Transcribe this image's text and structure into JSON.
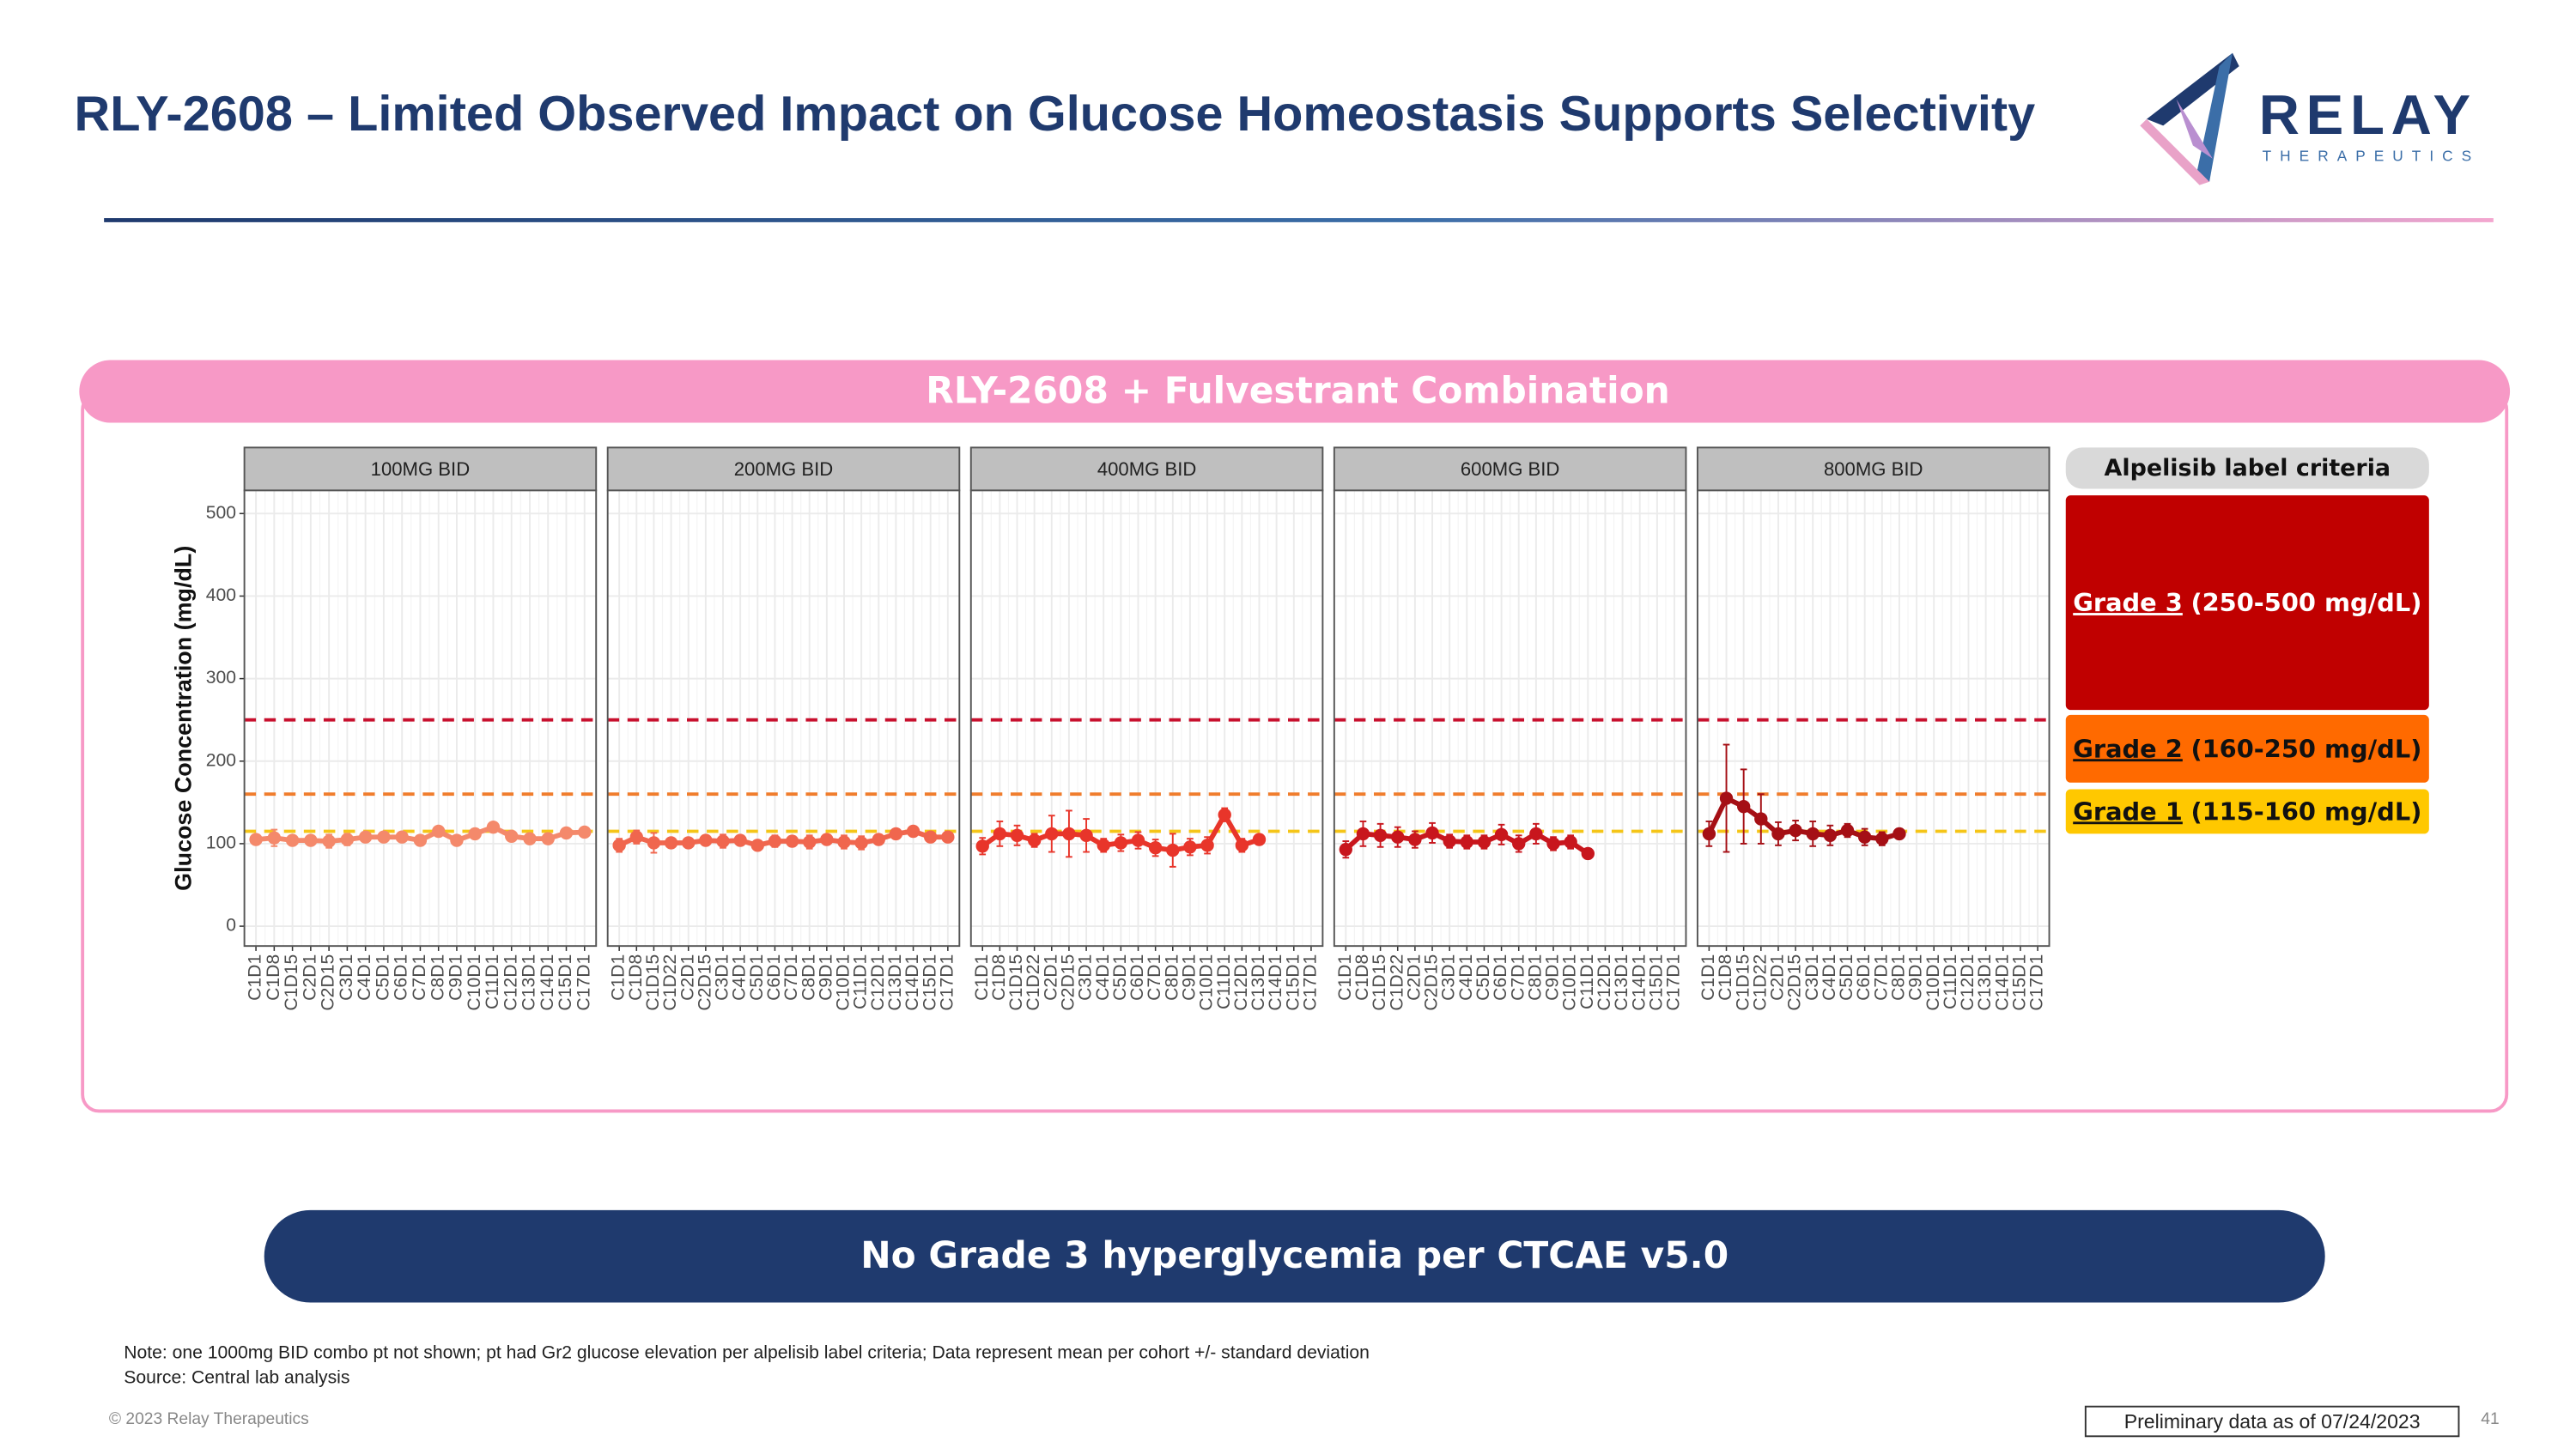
{
  "slide": {
    "title": "RLY-2608 – Limited Observed Impact on Glucose Homeostasis Supports Selectivity",
    "logo_name": "RELAY",
    "logo_sub": "THERAPEUTICS",
    "panel_title": "RLY-2608 + Fulvestrant Combination",
    "banner": "No Grade 3 hyperglycemia per CTCAE v5.0",
    "note": "Note: one 1000mg BID combo pt not shown; pt had Gr2 glucose elevation per alpelisib label criteria; Data represent mean per cohort +/- standard deviation",
    "source": "Source: Central lab analysis",
    "copyright": "© 2023 Relay Therapeutics",
    "footer_box": "Preliminary data as of 07/24/2023",
    "page_number": "41"
  },
  "legend": {
    "title": "Alpelisib label criteria",
    "items": [
      {
        "grade": "Grade 3",
        "range": "(250-500 mg/dL)",
        "color": "#c00000",
        "threshold": 250,
        "line_color": "#c8102e"
      },
      {
        "grade": "Grade 2",
        "range": "(160-250 mg/dL)",
        "color": "#ff6a00",
        "threshold": 160,
        "line_color": "#f07d2d"
      },
      {
        "grade": "Grade 1",
        "range": "(115-160 mg/dL)",
        "color": "#ffc800",
        "threshold": 115,
        "line_color": "#f5c518"
      }
    ]
  },
  "chart_data": [
    {
      "type": "line",
      "title": "100MG BID",
      "y_label": "Glucose Concentration (mg/dL)",
      "categories": [
        "C1D1",
        "C1D8",
        "C1D15",
        "C2D1",
        "C2D15",
        "C3D1",
        "C4D1",
        "C5D1",
        "C6D1",
        "C7D1",
        "C8D1",
        "C9D1",
        "C10D1",
        "C11D1",
        "C12D1",
        "C13D1",
        "C14D1",
        "C15D1",
        "C17D1"
      ],
      "series": [
        {
          "color": "#f4896b",
          "values": [
            105,
            107,
            104,
            104,
            103,
            105,
            108,
            108,
            108,
            104,
            115,
            104,
            112,
            120,
            109,
            106,
            106,
            113,
            114
          ],
          "errors": [
            6,
            10,
            5,
            4,
            8,
            7,
            6,
            5,
            5,
            6,
            5,
            4,
            6,
            5,
            6,
            4,
            5,
            4,
            4
          ]
        }
      ],
      "ylim": [
        -24,
        528
      ],
      "yticks": [
        0,
        100,
        200,
        300,
        400,
        500
      ],
      "grid": true
    },
    {
      "type": "line",
      "title": "200MG BID",
      "categories": [
        "C1D1",
        "C1D8",
        "C1D15",
        "C1D22",
        "C2D1",
        "C2D15",
        "C3D1",
        "C4D1",
        "C5D1",
        "C6D1",
        "C7D1",
        "C8D1",
        "C9D1",
        "C10D1",
        "C11D1",
        "C12D1",
        "C13D1",
        "C14D1",
        "C15D1",
        "C17D1"
      ],
      "series": [
        {
          "color": "#f0664e",
          "values": [
            98,
            108,
            101,
            101,
            101,
            104,
            103,
            104,
            98,
            103,
            103,
            102,
            105,
            102,
            101,
            105,
            112,
            115,
            108,
            108
          ],
          "errors": [
            8,
            8,
            12,
            5,
            5,
            6,
            8,
            5,
            5,
            7,
            6,
            8,
            6,
            8,
            8,
            6,
            5,
            6,
            5,
            4
          ]
        }
      ],
      "ylim": [
        -24,
        528
      ],
      "yticks": [
        0,
        100,
        200,
        300,
        400,
        500
      ],
      "grid": true
    },
    {
      "type": "line",
      "title": "400MG BID",
      "categories": [
        "C1D1",
        "C1D8",
        "C1D15",
        "C1D22",
        "C2D1",
        "C2D15",
        "C3D1",
        "C4D1",
        "C5D1",
        "C6D1",
        "C7D1",
        "C8D1",
        "C9D1",
        "C10D1",
        "C11D1",
        "C12D1",
        "C13D1",
        "C14D1",
        "C15D1",
        "C17D1"
      ],
      "series": [
        {
          "color": "#e8352a",
          "values": [
            97,
            112,
            110,
            104,
            112,
            112,
            110,
            98,
            101,
            104,
            95,
            92,
            96,
            98,
            135,
            98,
            105,
            null,
            null,
            null
          ],
          "errors": [
            10,
            15,
            12,
            8,
            22,
            28,
            20,
            8,
            10,
            10,
            10,
            20,
            10,
            10,
            8,
            8,
            6,
            null,
            null,
            null
          ]
        }
      ],
      "ylim": [
        -24,
        528
      ],
      "yticks": [
        0,
        100,
        200,
        300,
        400,
        500
      ],
      "grid": true
    },
    {
      "type": "line",
      "title": "600MG BID",
      "categories": [
        "C1D1",
        "C1D8",
        "C1D15",
        "C1D22",
        "C2D1",
        "C2D15",
        "C3D1",
        "C4D1",
        "C5D1",
        "C6D1",
        "C7D1",
        "C8D1",
        "C9D1",
        "C10D1",
        "C11D1",
        "C12D1",
        "C13D1",
        "C14D1",
        "C15D1",
        "C17D1"
      ],
      "series": [
        {
          "color": "#c8161d",
          "values": [
            93,
            112,
            110,
            108,
            105,
            113,
            103,
            102,
            102,
            111,
            100,
            112,
            100,
            102,
            88,
            null,
            null,
            null,
            null,
            null
          ],
          "errors": [
            10,
            15,
            14,
            12,
            10,
            12,
            8,
            8,
            8,
            12,
            10,
            12,
            8,
            8,
            6,
            null,
            null,
            null,
            null,
            null
          ]
        }
      ],
      "ylim": [
        -24,
        528
      ],
      "yticks": [
        0,
        100,
        200,
        300,
        400,
        500
      ],
      "grid": true
    },
    {
      "type": "line",
      "title": "800MG BID",
      "categories": [
        "C1D1",
        "C1D8",
        "C1D15",
        "C1D22",
        "C2D1",
        "C2D15",
        "C3D1",
        "C4D1",
        "C5D1",
        "C6D1",
        "C7D1",
        "C8D1",
        "C9D1",
        "C10D1",
        "C11D1",
        "C12D1",
        "C13D1",
        "C14D1",
        "C15D1",
        "C17D1"
      ],
      "series": [
        {
          "color": "#a50f15",
          "values": [
            112,
            155,
            145,
            130,
            112,
            116,
            112,
            110,
            116,
            108,
            106,
            112,
            null,
            null,
            null,
            null,
            null,
            null,
            null,
            null
          ],
          "errors": [
            15,
            65,
            45,
            30,
            14,
            12,
            15,
            12,
            8,
            10,
            8,
            6,
            null,
            null,
            null,
            null,
            null,
            null,
            null,
            null
          ]
        }
      ],
      "ylim": [
        -24,
        528
      ],
      "yticks": [
        0,
        100,
        200,
        300,
        400,
        500
      ],
      "grid": true
    }
  ]
}
